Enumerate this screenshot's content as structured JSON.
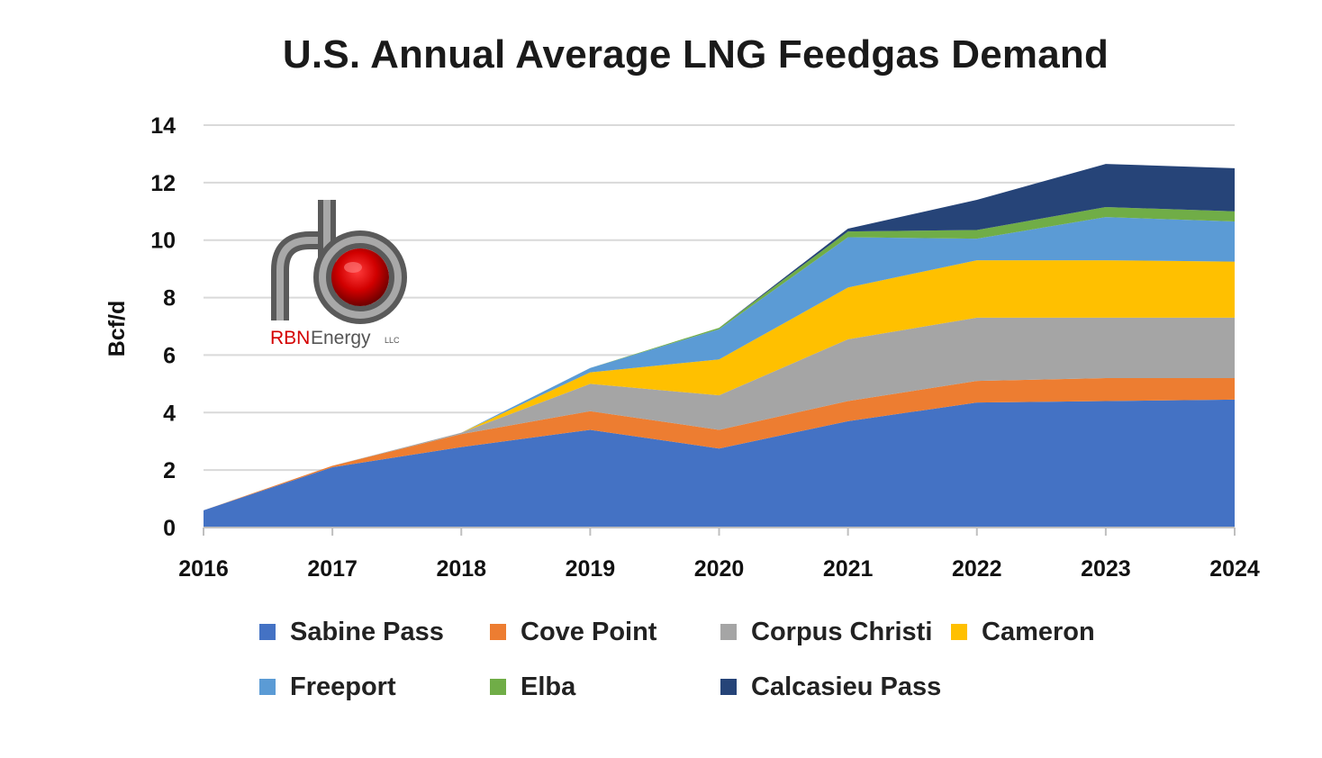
{
  "chart_data": {
    "type": "area",
    "stacked": true,
    "title": "U.S. Annual Average LNG Feedgas Demand",
    "ylabel": "Bcf/d",
    "xlabel": "",
    "x": [
      "2016",
      "2017",
      "2018",
      "2019",
      "2020",
      "2021",
      "2022",
      "2023",
      "2024"
    ],
    "ylim": [
      0,
      14
    ],
    "yticks": [
      0,
      2,
      4,
      6,
      8,
      10,
      12,
      14
    ],
    "grid": true,
    "legend_position": "bottom",
    "series": [
      {
        "name": "Sabine Pass",
        "color": "#4472C4",
        "values": [
          0.6,
          2.1,
          2.8,
          3.4,
          2.75,
          3.7,
          4.35,
          4.4,
          4.45
        ]
      },
      {
        "name": "Cove Point",
        "color": "#ED7D31",
        "values": [
          0.0,
          0.05,
          0.45,
          0.65,
          0.65,
          0.7,
          0.75,
          0.8,
          0.75
        ]
      },
      {
        "name": "Corpus Christi",
        "color": "#A5A5A5",
        "values": [
          0.0,
          0.0,
          0.05,
          0.95,
          1.2,
          2.15,
          2.2,
          2.1,
          2.1
        ]
      },
      {
        "name": "Cameron",
        "color": "#FFC000",
        "values": [
          0.0,
          0.0,
          0.0,
          0.4,
          1.25,
          1.8,
          2.0,
          2.0,
          1.95
        ]
      },
      {
        "name": "Freeport",
        "color": "#5B9BD5",
        "values": [
          0.0,
          0.0,
          0.0,
          0.15,
          1.05,
          1.75,
          0.75,
          1.5,
          1.4
        ]
      },
      {
        "name": "Elba",
        "color": "#70AD47",
        "values": [
          0.0,
          0.0,
          0.0,
          0.0,
          0.05,
          0.2,
          0.3,
          0.35,
          0.35
        ]
      },
      {
        "name": "Calcasieu Pass",
        "color": "#264478",
        "values": [
          0.0,
          0.0,
          0.0,
          0.0,
          0.0,
          0.1,
          1.05,
          1.5,
          1.5
        ]
      }
    ]
  },
  "logo": {
    "name": "rbn-energy-logo",
    "text_red": "RBN",
    "text_gray": "Energy",
    "suffix": "LLC"
  }
}
